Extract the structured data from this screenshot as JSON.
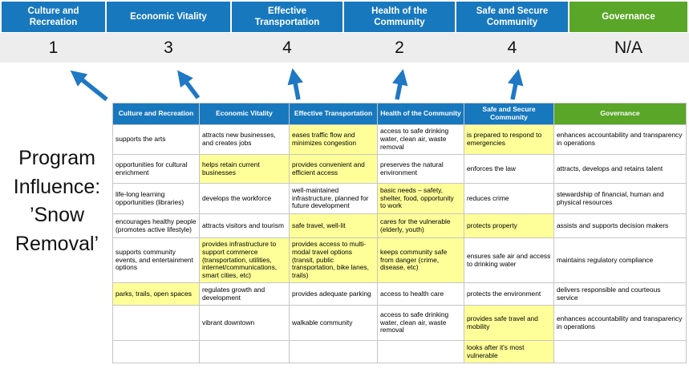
{
  "program_label": "Program Influence: ’Snow Removal’",
  "colors": {
    "pillar_blue": "#1878be",
    "governance_green": "#5aa628",
    "highlight_yellow": "#ffff99",
    "score_band_gray": "#ededed",
    "arrow_blue": "#1e78c4"
  },
  "header": {
    "pillars": [
      {
        "label": "Culture and Recreation",
        "score": "1"
      },
      {
        "label": "Economic Vitality",
        "score": "3"
      },
      {
        "label": "Effective Transportation",
        "score": "4"
      },
      {
        "label": "Health of the Community",
        "score": "2"
      },
      {
        "label": "Safe and Secure Community",
        "score": "4"
      },
      {
        "label": "Governance",
        "score": "N/A"
      }
    ]
  },
  "table": {
    "headers": [
      "Culture and Recreation",
      "Economic Vitality",
      "Effective Transportation",
      "Health of the Community",
      "Safe and Secure Community",
      "Governance"
    ],
    "rows": [
      [
        {
          "text": "supports the arts",
          "hl": false
        },
        {
          "text": "attracts new businesses, and creates jobs",
          "hl": false
        },
        {
          "text": "eases traffic flow and minimizes congestion",
          "hl": true
        },
        {
          "text": "access to safe drinking water, clean air, waste removal",
          "hl": false
        },
        {
          "text": "is prepared to respond to emergencies",
          "hl": true
        },
        {
          "text": "enhances accountability and transparency in operations",
          "hl": false
        }
      ],
      [
        {
          "text": "opportunities for cultural enrichment",
          "hl": false
        },
        {
          "text": "helps retain current businesses",
          "hl": true
        },
        {
          "text": "provides convenient and efficient access",
          "hl": true
        },
        {
          "text": "preserves the natural environment",
          "hl": false
        },
        {
          "text": "enforces the law",
          "hl": false
        },
        {
          "text": "attracts, develops and retains talent",
          "hl": false
        }
      ],
      [
        {
          "text": "life-long learning opportunities (libraries)",
          "hl": false
        },
        {
          "text": "develops the workforce",
          "hl": false
        },
        {
          "text": "well-maintained infrastructure, planned for future development",
          "hl": false
        },
        {
          "text": "basic needs – safety, shelter, food, opportunity to work",
          "hl": true
        },
        {
          "text": "reduces crime",
          "hl": false
        },
        {
          "text": "stewardship of financial, human and physical resources",
          "hl": false
        }
      ],
      [
        {
          "text": "encourages healthy people (promotes active lifestyle)",
          "hl": false
        },
        {
          "text": "attracts visitors and tourism",
          "hl": false
        },
        {
          "text": "safe travel, well-lit",
          "hl": true
        },
        {
          "text": "cares for the vulnerable (elderly, youth)",
          "hl": true
        },
        {
          "text": "protects property",
          "hl": true
        },
        {
          "text": "assists and supports decision makers",
          "hl": false
        }
      ],
      [
        {
          "text": "supports community events, and entertainment options",
          "hl": false
        },
        {
          "text": "provides infrastructure to support commerce (transportation, utilities, internet/communications, smart cities, etc)",
          "hl": true
        },
        {
          "text": "provides access to multi-modal travel options (transit, public transportation, bike lanes, trails)",
          "hl": true
        },
        {
          "text": "keeps community safe from danger (crime, disease, etc)",
          "hl": true
        },
        {
          "text": "ensures safe air and access to drinking water",
          "hl": false
        },
        {
          "text": "maintains regulatory compliance",
          "hl": false
        }
      ],
      [
        {
          "text": "parks, trails, open spaces",
          "hl": true
        },
        {
          "text": "regulates growth and development",
          "hl": false
        },
        {
          "text": "provides adequate parking",
          "hl": false
        },
        {
          "text": "access to health care",
          "hl": false
        },
        {
          "text": "protects the environment",
          "hl": false
        },
        {
          "text": "delivers responsible and courteous service",
          "hl": false
        }
      ],
      [
        {
          "text": "",
          "hl": false
        },
        {
          "text": "vibrant downtown",
          "hl": false
        },
        {
          "text": "walkable community",
          "hl": false
        },
        {
          "text": "access to safe drinking water, clean air, waste removal",
          "hl": false
        },
        {
          "text": "provides safe travel and mobility",
          "hl": true
        },
        {
          "text": "enhances accountability and transparency in operations",
          "hl": false
        }
      ],
      [
        {
          "text": "",
          "hl": false
        },
        {
          "text": "",
          "hl": false
        },
        {
          "text": "",
          "hl": false
        },
        {
          "text": "",
          "hl": false
        },
        {
          "text": "looks after it's most vulnerable",
          "hl": true
        },
        {
          "text": "",
          "hl": false
        }
      ]
    ]
  }
}
